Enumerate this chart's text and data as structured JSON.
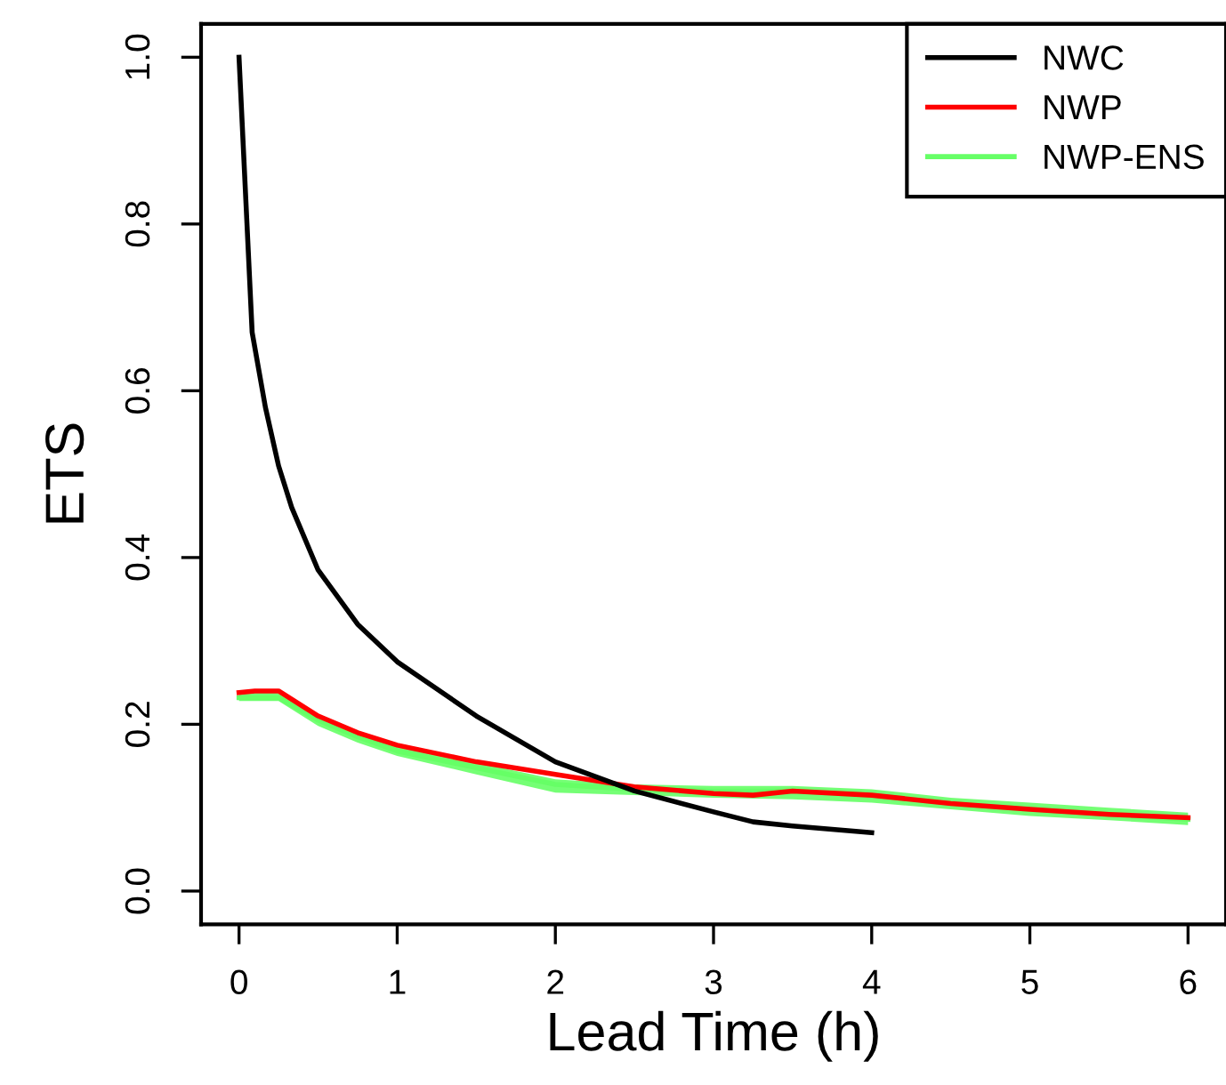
{
  "chart_data": {
    "type": "line",
    "xlabel": "Lead Time (h)",
    "ylabel": "ETS",
    "xlim": [
      -0.24,
      6.24
    ],
    "ylim": [
      -0.04,
      1.04
    ],
    "xticks": [
      0,
      1,
      2,
      3,
      4,
      5,
      6
    ],
    "yticks": [
      {
        "value": 0,
        "label": "0.0"
      },
      {
        "value": 0.2,
        "label": "0.2"
      },
      {
        "value": 0.4,
        "label": "0.4"
      },
      {
        "value": 0.6,
        "label": "0.6"
      },
      {
        "value": 0.8,
        "label": "0.8"
      },
      {
        "value": 1,
        "label": "1.0"
      }
    ],
    "grid": false,
    "legend": "top right",
    "marker": "none",
    "line_style": "solid",
    "series": [
      {
        "name": "NWP-ENS",
        "color": "#66ff66",
        "x": [
          0,
          0.25,
          0.5,
          0.75,
          1,
          1.5,
          2,
          2.5,
          3,
          3.5,
          4,
          4.5,
          5,
          5.5,
          6
        ],
        "values": [
          0.232,
          0.232,
          0.205,
          0.185,
          0.168,
          0.148,
          0.128,
          0.122,
          0.12,
          0.12,
          0.115,
          0.105,
          0.098,
          0.092,
          0.086
        ],
        "lower": [
          0.228,
          0.228,
          0.198,
          0.178,
          0.162,
          0.14,
          0.118,
          0.115,
          0.112,
          0.11,
          0.106,
          0.098,
          0.09,
          0.085,
          0.079
        ],
        "upper": [
          0.238,
          0.238,
          0.21,
          0.19,
          0.173,
          0.154,
          0.134,
          0.128,
          0.126,
          0.126,
          0.122,
          0.112,
          0.106,
          0.1,
          0.094
        ]
      },
      {
        "name": "NWP",
        "color": "#ff0000",
        "x": [
          0,
          0.1,
          0.25,
          0.5,
          0.75,
          1,
          1.5,
          2,
          2.5,
          3,
          3.25,
          3.5,
          4,
          4.5,
          5,
          5.5,
          6
        ],
        "values": [
          0.238,
          0.24,
          0.24,
          0.21,
          0.19,
          0.175,
          0.155,
          0.14,
          0.125,
          0.117,
          0.115,
          0.12,
          0.115,
          0.105,
          0.098,
          0.092,
          0.088
        ]
      },
      {
        "name": "NWC",
        "color": "#000000",
        "x": [
          0,
          0.083,
          0.167,
          0.25,
          0.333,
          0.5,
          0.75,
          1,
          1.5,
          2,
          2.5,
          3,
          3.25,
          3.5,
          4
        ],
        "values": [
          1.0,
          0.67,
          0.58,
          0.51,
          0.46,
          0.385,
          0.32,
          0.275,
          0.21,
          0.155,
          0.12,
          0.095,
          0.083,
          0.078,
          0.07
        ]
      }
    ]
  }
}
